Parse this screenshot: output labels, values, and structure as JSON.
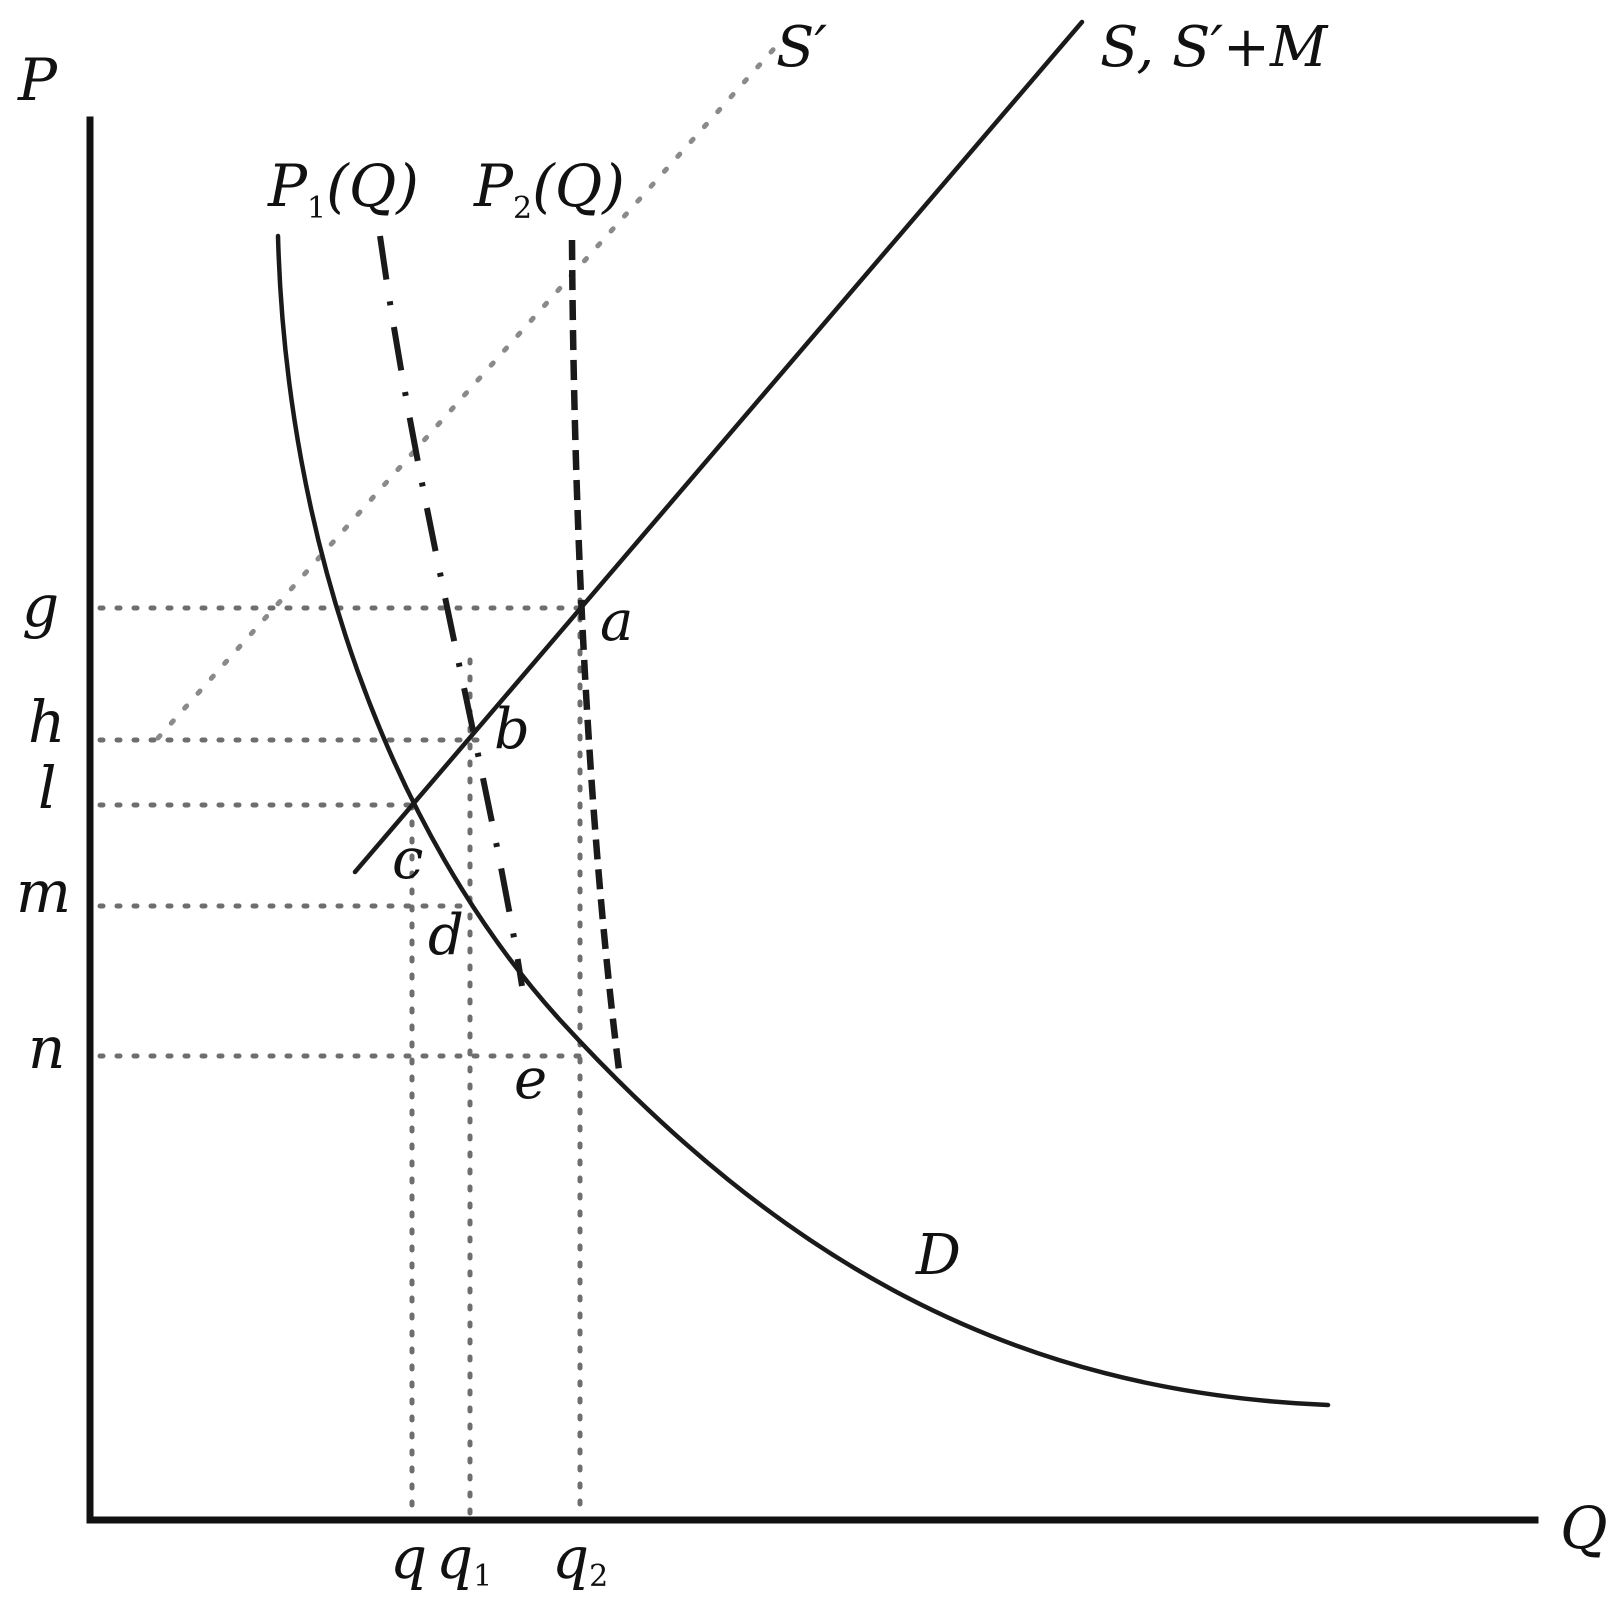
{
  "axes": {
    "y_label": "P",
    "x_label": "Q"
  },
  "price_ticks": [
    "g",
    "h",
    "l",
    "m",
    "n"
  ],
  "quantity_ticks": [
    {
      "main": "q",
      "sub": ""
    },
    {
      "main": "q",
      "sub": "1"
    },
    {
      "main": "q",
      "sub": "2"
    }
  ],
  "curves": {
    "demand": "D",
    "supply": "S, S′+M",
    "supply_prime": "S′",
    "p1": {
      "main": "P",
      "sub": "1",
      "arg": "(Q)"
    },
    "p2": {
      "main": "P",
      "sub": "2",
      "arg": "(Q)"
    }
  },
  "points": [
    "a",
    "b",
    "c",
    "d",
    "e"
  ]
}
